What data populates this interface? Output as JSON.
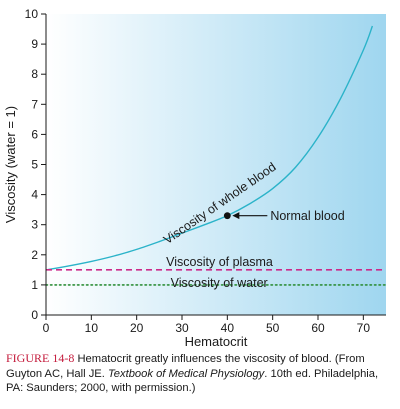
{
  "chart_data": {
    "type": "line",
    "xlabel": "Hematocrit",
    "ylabel": "Viscosity (water = 1)",
    "xlim": [
      0,
      75
    ],
    "ylim": [
      0,
      10
    ],
    "x_ticks": [
      0,
      10,
      20,
      30,
      40,
      50,
      60,
      70
    ],
    "y_ticks": [
      0,
      1,
      2,
      3,
      4,
      5,
      6,
      7,
      8,
      9,
      10
    ],
    "grid": false,
    "series": [
      {
        "name": "Viscosity of whole blood",
        "color": "#2bb3c9",
        "style": "solid",
        "x": [
          0,
          5,
          10,
          15,
          20,
          25,
          30,
          35,
          40,
          45,
          50,
          55,
          60,
          65,
          70,
          72
        ],
        "y": [
          1.5,
          1.63,
          1.78,
          1.96,
          2.18,
          2.44,
          2.72,
          3.0,
          3.3,
          3.7,
          4.2,
          4.9,
          5.9,
          7.2,
          8.8,
          9.6
        ]
      },
      {
        "name": "Viscosity of plasma",
        "color": "#cc2a8a",
        "style": "dashed",
        "x": [
          0,
          75
        ],
        "y": [
          1.5,
          1.5
        ]
      },
      {
        "name": "Viscosity of water",
        "color": "#2f8f3a",
        "style": "dotted",
        "x": [
          0,
          75
        ],
        "y": [
          1.0,
          1.0
        ]
      }
    ],
    "annotations": [
      {
        "text": "Normal blood",
        "point": [
          40,
          3.3
        ]
      }
    ],
    "background_gradient": [
      "#ffffff",
      "#9fd6ef"
    ]
  },
  "caption": {
    "figure_label": "FIGURE 14-8",
    "text1": " Hematocrit greatly influences the viscosity of blood. (From Guyton AC, Hall JE. ",
    "book": "Textbook of Medical Physiology",
    "text2": ". 10th ed. Philadelphia, PA: Saunders; 2000, with permission.)"
  }
}
